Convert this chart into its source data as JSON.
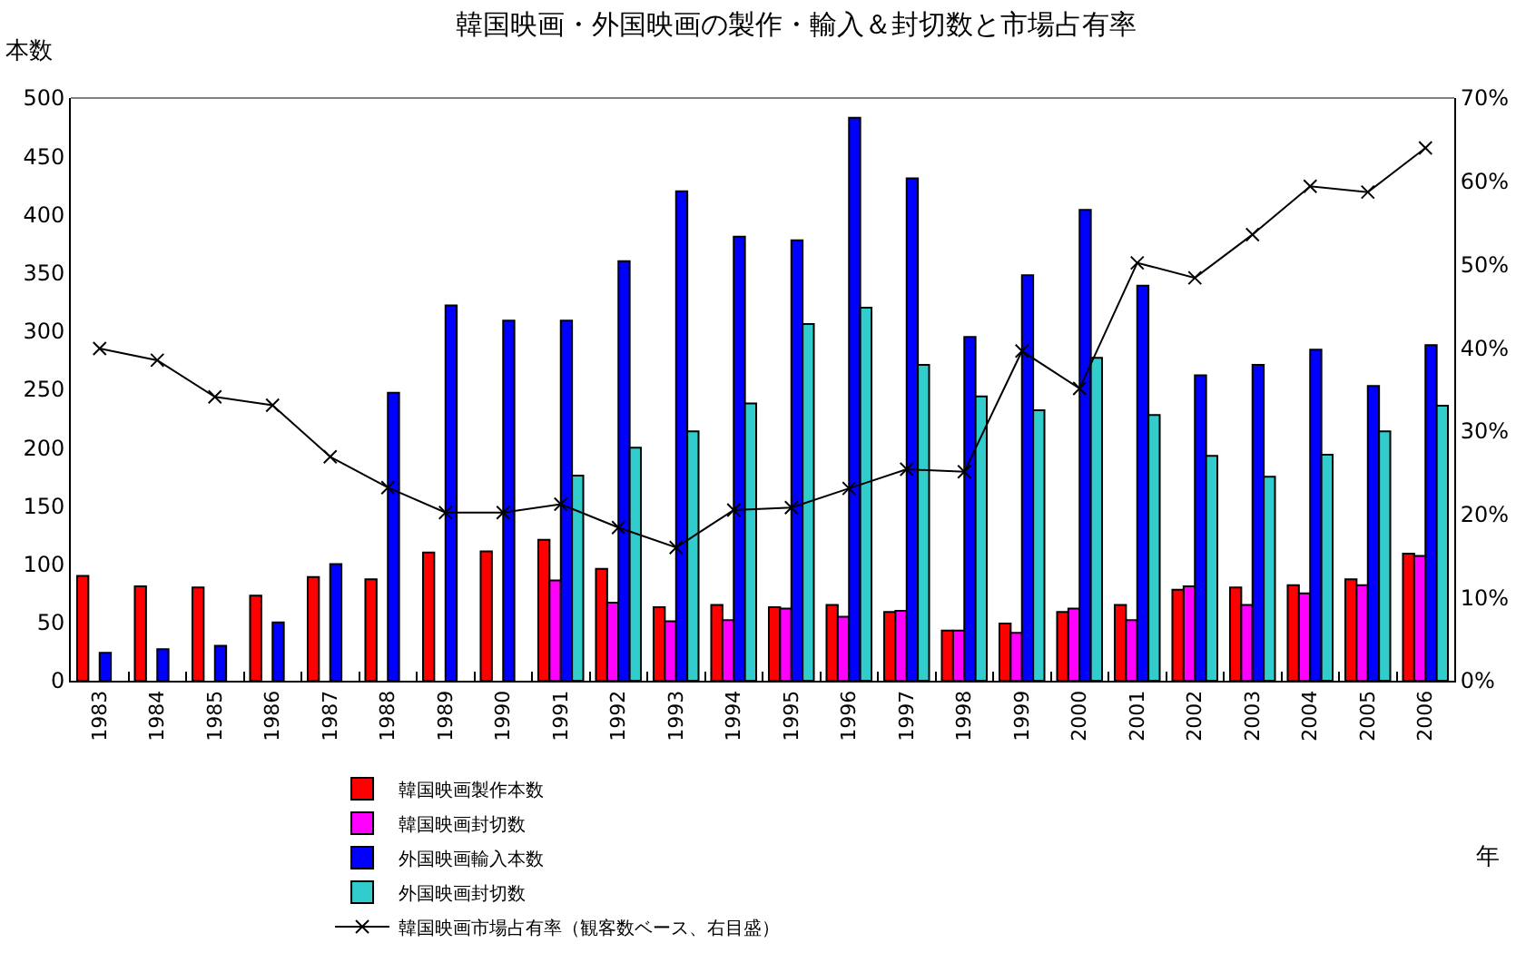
{
  "chart_data": {
    "type": "bar",
    "title": "韓国映画・外国映画の製作・輸入＆封切数と市場占有率",
    "xlabel": "年",
    "ylabel": "本数",
    "categories": [
      "1983",
      "1984",
      "1985",
      "1986",
      "1987",
      "1988",
      "1989",
      "1990",
      "1991",
      "1992",
      "1993",
      "1994",
      "1995",
      "1996",
      "1997",
      "1998",
      "1999",
      "2000",
      "2001",
      "2002",
      "2003",
      "2004",
      "2005",
      "2006"
    ],
    "series": [
      {
        "name": "韓国映画製作本数",
        "color": "#ff0000",
        "values": [
          90,
          81,
          80,
          73,
          89,
          87,
          110,
          111,
          121,
          96,
          63,
          65,
          63,
          65,
          59,
          43,
          49,
          59,
          65,
          78,
          80,
          82,
          87,
          109
        ]
      },
      {
        "name": "韓国映画封切数",
        "color": "#ff00ff",
        "values": [
          null,
          null,
          null,
          null,
          null,
          null,
          null,
          null,
          86,
          67,
          51,
          52,
          62,
          55,
          60,
          43,
          41,
          62,
          52,
          81,
          65,
          75,
          82,
          107
        ]
      },
      {
        "name": "外国映画輸入本数",
        "color": "#0000ff",
        "values": [
          24,
          27,
          30,
          50,
          100,
          247,
          322,
          309,
          309,
          360,
          420,
          381,
          378,
          483,
          431,
          295,
          348,
          404,
          339,
          262,
          271,
          284,
          253,
          288
        ]
      },
      {
        "name": "外国映画封切数",
        "color": "#33cccc",
        "values": [
          null,
          null,
          null,
          null,
          null,
          null,
          null,
          null,
          176,
          200,
          214,
          238,
          306,
          320,
          271,
          244,
          232,
          277,
          228,
          193,
          175,
          194,
          214,
          236
        ]
      },
      {
        "name": "韓国映画市場占有率（観客数ベース、右目盛）",
        "color": "#000000",
        "type": "line",
        "axis": "y2",
        "values": [
          39.9,
          38.5,
          34.1,
          33.1,
          26.9,
          23.2,
          20.2,
          20.2,
          21.2,
          18.4,
          16.0,
          20.5,
          20.8,
          23.1,
          25.4,
          25.1,
          39.6,
          35.1,
          50.2,
          48.4,
          53.6,
          59.4,
          58.7,
          64.0
        ]
      }
    ],
    "ylim": [
      0,
      500
    ],
    "yticks": [
      0,
      50,
      100,
      150,
      200,
      250,
      300,
      350,
      400,
      450,
      500
    ],
    "y2lim": [
      0,
      70
    ],
    "y2ticks": [
      {
        "value": 0,
        "label": "0%"
      },
      {
        "value": 10,
        "label": "10%"
      },
      {
        "value": 20,
        "label": "20%"
      },
      {
        "value": 30,
        "label": "30%"
      },
      {
        "value": 40,
        "label": "40%"
      },
      {
        "value": 50,
        "label": "50%"
      },
      {
        "value": 60,
        "label": "60%"
      },
      {
        "value": 70,
        "label": "70%"
      }
    ],
    "marker": "cross",
    "line_style": "solid",
    "legend": "bottom left"
  }
}
